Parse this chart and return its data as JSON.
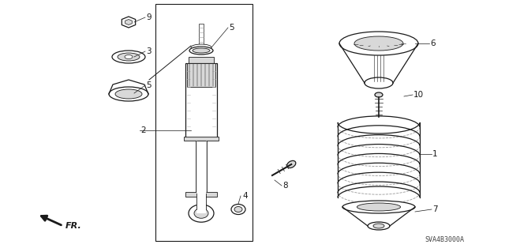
{
  "bg_color": "#ffffff",
  "line_color": "#1a1a1a",
  "gray_fill": "#d8d8d8",
  "dark_gray": "#999999",
  "mid_gray": "#bbbbbb",
  "diagram_code": "SVA4B3000A",
  "figsize": [
    6.4,
    3.19
  ],
  "dpi": 100
}
